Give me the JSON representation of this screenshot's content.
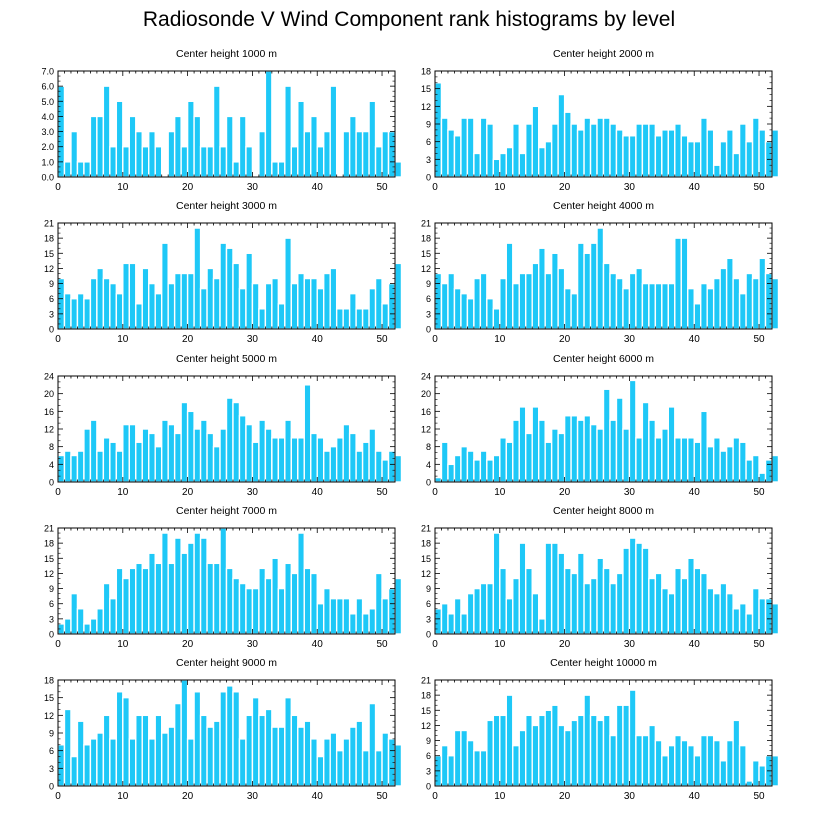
{
  "title": "Radiosonde V Wind Component rank histograms by level",
  "colors": {
    "bar": "#1ec8f7",
    "bar_edge": "#ffffff",
    "axis": "#000000"
  },
  "chart_data": [
    {
      "type": "bar",
      "title": "Center height 1000 m",
      "xlim": [
        0,
        52
      ],
      "ylim": [
        0,
        7
      ],
      "xticks": [
        0,
        10,
        20,
        30,
        40,
        50
      ],
      "yticks": [
        0,
        1,
        2,
        3,
        4,
        5,
        6,
        7
      ],
      "ytick_labels": [
        "0.0",
        "1.0",
        "2.0",
        "3.0",
        "4.0",
        "5.0",
        "6.0",
        "7.0"
      ],
      "values": [
        6,
        1,
        3,
        1,
        1,
        4,
        4,
        6,
        2,
        5,
        2,
        4,
        3,
        2,
        3,
        2,
        0,
        3,
        4,
        2,
        5,
        4,
        2,
        2,
        6,
        2,
        4,
        1,
        4,
        2,
        0,
        3,
        7,
        1,
        1,
        6,
        2,
        5,
        3,
        4,
        2,
        3,
        6,
        0,
        3,
        4,
        3,
        3,
        5,
        2,
        3,
        3,
        1
      ]
    },
    {
      "type": "bar",
      "title": "Center height 2000 m",
      "xlim": [
        0,
        52
      ],
      "ylim": [
        0,
        18
      ],
      "xticks": [
        0,
        10,
        20,
        30,
        40,
        50
      ],
      "yticks": [
        0,
        3,
        6,
        9,
        12,
        15,
        18
      ],
      "ytick_labels": [
        "0",
        "3",
        "6",
        "9",
        "12",
        "15",
        "18"
      ],
      "values": [
        16,
        10,
        8,
        7,
        10,
        10,
        4,
        10,
        9,
        3,
        4,
        5,
        9,
        4,
        9,
        12,
        5,
        6,
        9,
        14,
        11,
        9,
        8,
        10,
        9,
        10,
        10,
        9,
        8,
        7,
        7,
        9,
        9,
        9,
        7,
        8,
        8,
        9,
        7,
        6,
        6,
        10,
        8,
        2,
        6,
        8,
        4,
        9,
        6,
        10,
        8,
        6,
        8
      ]
    },
    {
      "type": "bar",
      "title": "Center height 3000 m",
      "xlim": [
        0,
        52
      ],
      "ylim": [
        0,
        21
      ],
      "xticks": [
        0,
        10,
        20,
        30,
        40,
        50
      ],
      "yticks": [
        0,
        3,
        6,
        9,
        12,
        15,
        18,
        21
      ],
      "ytick_labels": [
        "0",
        "3",
        "6",
        "9",
        "12",
        "15",
        "18",
        "21"
      ],
      "values": [
        10,
        7,
        6,
        7,
        6,
        10,
        12,
        10,
        9,
        7,
        13,
        13,
        5,
        12,
        9,
        7,
        17,
        9,
        11,
        11,
        11,
        20,
        8,
        12,
        10,
        17,
        16,
        13,
        8,
        15,
        9,
        4,
        9,
        10,
        5,
        18,
        9,
        11,
        10,
        10,
        8,
        11,
        12,
        4,
        4,
        7,
        4,
        4,
        8,
        10,
        5,
        9,
        13
      ]
    },
    {
      "type": "bar",
      "title": "Center height 4000 m",
      "xlim": [
        0,
        52
      ],
      "ylim": [
        0,
        21
      ],
      "xticks": [
        0,
        10,
        20,
        30,
        40,
        50
      ],
      "yticks": [
        0,
        3,
        6,
        9,
        12,
        15,
        18,
        21
      ],
      "ytick_labels": [
        "0",
        "3",
        "6",
        "9",
        "12",
        "15",
        "18",
        "21"
      ],
      "values": [
        11,
        9,
        11,
        8,
        7,
        6,
        10,
        11,
        6,
        4,
        10,
        17,
        9,
        11,
        11,
        13,
        16,
        11,
        15,
        12,
        8,
        7,
        17,
        15,
        17,
        20,
        13,
        11,
        10,
        8,
        11,
        12,
        9,
        9,
        9,
        9,
        9,
        18,
        18,
        8,
        5,
        9,
        8,
        10,
        12,
        14,
        10,
        7,
        11,
        10,
        14,
        11,
        10
      ]
    },
    {
      "type": "bar",
      "title": "Center height 5000 m",
      "xlim": [
        0,
        52
      ],
      "ylim": [
        0,
        24
      ],
      "xticks": [
        0,
        10,
        20,
        30,
        40,
        50
      ],
      "yticks": [
        0,
        4,
        8,
        12,
        16,
        20,
        24
      ],
      "ytick_labels": [
        "0",
        "4",
        "8",
        "12",
        "16",
        "20",
        "24"
      ],
      "values": [
        6,
        7,
        6,
        7,
        12,
        14,
        7,
        10,
        9,
        7,
        13,
        13,
        9,
        12,
        11,
        8,
        14,
        13,
        11,
        18,
        16,
        12,
        14,
        11,
        8,
        12,
        19,
        18,
        15,
        13,
        9,
        14,
        12,
        10,
        10,
        14,
        10,
        10,
        22,
        11,
        10,
        7,
        8,
        10,
        13,
        11,
        7,
        9,
        12,
        7,
        5,
        7,
        6
      ]
    },
    {
      "type": "bar",
      "title": "Center height 6000 m",
      "xlim": [
        0,
        52
      ],
      "ylim": [
        0,
        24
      ],
      "xticks": [
        0,
        10,
        20,
        30,
        40,
        50
      ],
      "yticks": [
        0,
        4,
        8,
        12,
        16,
        20,
        24
      ],
      "ytick_labels": [
        "0",
        "4",
        "8",
        "12",
        "16",
        "20",
        "24"
      ],
      "values": [
        1,
        9,
        4,
        6,
        8,
        7,
        5,
        7,
        5,
        6,
        10,
        9,
        14,
        17,
        11,
        17,
        14,
        9,
        12,
        11,
        15,
        15,
        14,
        15,
        13,
        12,
        21,
        14,
        19,
        12,
        23,
        10,
        18,
        14,
        10,
        12,
        17,
        10,
        10,
        10,
        9,
        16,
        8,
        10,
        7,
        8,
        10,
        9,
        5,
        6,
        2,
        5,
        6
      ]
    },
    {
      "type": "bar",
      "title": "Center height 7000 m",
      "xlim": [
        0,
        52
      ],
      "ylim": [
        0,
        21
      ],
      "xticks": [
        0,
        10,
        20,
        30,
        40,
        50
      ],
      "yticks": [
        0,
        3,
        6,
        9,
        12,
        15,
        18,
        21
      ],
      "ytick_labels": [
        "0",
        "3",
        "6",
        "9",
        "12",
        "15",
        "18",
        "21"
      ],
      "values": [
        2,
        3,
        8,
        5,
        2,
        3,
        5,
        10,
        7,
        13,
        11,
        13,
        14,
        13,
        16,
        14,
        20,
        14,
        19,
        16,
        18,
        20,
        19,
        14,
        14,
        21,
        13,
        11,
        10,
        9,
        9,
        13,
        11,
        15,
        9,
        14,
        12,
        20,
        13,
        12,
        6,
        9,
        7,
        7,
        7,
        4,
        7,
        4,
        5,
        12,
        7,
        9,
        11
      ]
    },
    {
      "type": "bar",
      "title": "Center height 8000 m",
      "xlim": [
        0,
        52
      ],
      "ylim": [
        0,
        21
      ],
      "xticks": [
        0,
        10,
        20,
        30,
        40,
        50
      ],
      "yticks": [
        0,
        3,
        6,
        9,
        12,
        15,
        18,
        21
      ],
      "ytick_labels": [
        "0",
        "3",
        "6",
        "9",
        "12",
        "15",
        "18",
        "21"
      ],
      "values": [
        5,
        6,
        4,
        7,
        4,
        8,
        9,
        10,
        10,
        20,
        13,
        7,
        11,
        18,
        13,
        8,
        3,
        18,
        18,
        16,
        13,
        12,
        16,
        10,
        11,
        15,
        13,
        10,
        12,
        17,
        19,
        18,
        17,
        11,
        12,
        9,
        8,
        13,
        11,
        15,
        13,
        12,
        9,
        8,
        10,
        8,
        5,
        6,
        4,
        9,
        7,
        7,
        6
      ]
    },
    {
      "type": "bar",
      "title": "Center height 9000 m",
      "xlim": [
        0,
        52
      ],
      "ylim": [
        0,
        18
      ],
      "xticks": [
        0,
        10,
        20,
        30,
        40,
        50
      ],
      "yticks": [
        0,
        3,
        6,
        9,
        12,
        15,
        18
      ],
      "ytick_labels": [
        "0",
        "3",
        "6",
        "9",
        "12",
        "15",
        "18"
      ],
      "values": [
        7,
        13,
        5,
        11,
        7,
        8,
        9,
        12,
        8,
        16,
        15,
        8,
        12,
        12,
        8,
        12,
        9,
        10,
        14,
        18,
        8,
        16,
        12,
        10,
        11,
        16,
        17,
        16,
        8,
        12,
        15,
        12,
        13,
        10,
        10,
        15,
        12,
        10,
        11,
        8,
        5,
        8,
        9,
        6,
        8,
        10,
        11,
        6,
        14,
        6,
        9,
        8,
        7
      ]
    },
    {
      "type": "bar",
      "title": "Center height 10000 m",
      "xlim": [
        0,
        52
      ],
      "ylim": [
        0,
        21
      ],
      "xticks": [
        0,
        10,
        20,
        30,
        40,
        50
      ],
      "yticks": [
        0,
        3,
        6,
        9,
        12,
        15,
        18,
        21
      ],
      "ytick_labels": [
        "0",
        "3",
        "6",
        "9",
        "12",
        "15",
        "18",
        "21"
      ],
      "values": [
        6,
        8,
        6,
        11,
        11,
        9,
        7,
        7,
        13,
        14,
        14,
        18,
        8,
        11,
        14,
        12,
        14,
        15,
        16,
        12,
        11,
        13,
        14,
        18,
        14,
        13,
        14,
        10,
        16,
        16,
        19,
        10,
        10,
        12,
        9,
        6,
        8,
        10,
        9,
        8,
        6,
        10,
        10,
        9,
        5,
        9,
        13,
        8,
        1,
        5,
        4,
        6,
        6
      ]
    }
  ]
}
